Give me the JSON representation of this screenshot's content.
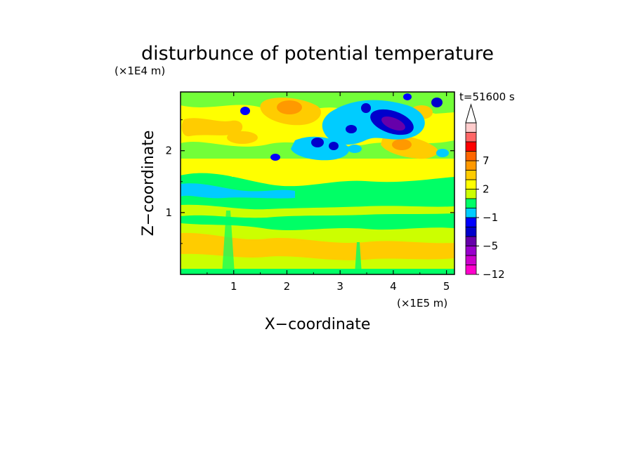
{
  "chart_data": {
    "type": "heatmap",
    "title": "disturbunce of potential temperature",
    "time_label": "t=51600 s",
    "xlabel": "X−coordinate",
    "ylabel": "Z−coordinate",
    "x_unit": "(×1E5 m)",
    "y_unit": "(×1E4 m)",
    "xlim": [
      0,
      5.15
    ],
    "ylim": [
      0,
      2.95
    ],
    "x_ticks": [
      "1",
      "2",
      "3",
      "4",
      "5"
    ],
    "y_ticks": [
      "1",
      "2"
    ],
    "colorbar": {
      "levels": [
        -12,
        -9,
        -7,
        -5,
        -3,
        -2,
        -1,
        0,
        1,
        2,
        3,
        5,
        7,
        9,
        12
      ],
      "tick_labels": [
        "−12",
        "−5",
        "−1",
        "2",
        "7"
      ],
      "colors": [
        "#ff00cc",
        "#cc00cc",
        "#9900cc",
        "#6600aa",
        "#0000cc",
        "#0000ff",
        "#00ccff",
        "#00ff66",
        "#ccff00",
        "#ffff00",
        "#ffcc00",
        "#ff9900",
        "#ff6600",
        "#ff0000",
        "#ff6666",
        "#ffcccc"
      ],
      "extend_max": true
    },
    "field_features": [
      {
        "region": "lower band z 0-0.8",
        "value": 1.5
      },
      {
        "region": "band z 0.8-1.6",
        "value": -0.5
      },
      {
        "region": "upper-right negative core x 3.9-4.2 z 2.4",
        "value": -9
      },
      {
        "region": "upper positive patches z 2.0-2.8",
        "value": 4
      }
    ]
  }
}
